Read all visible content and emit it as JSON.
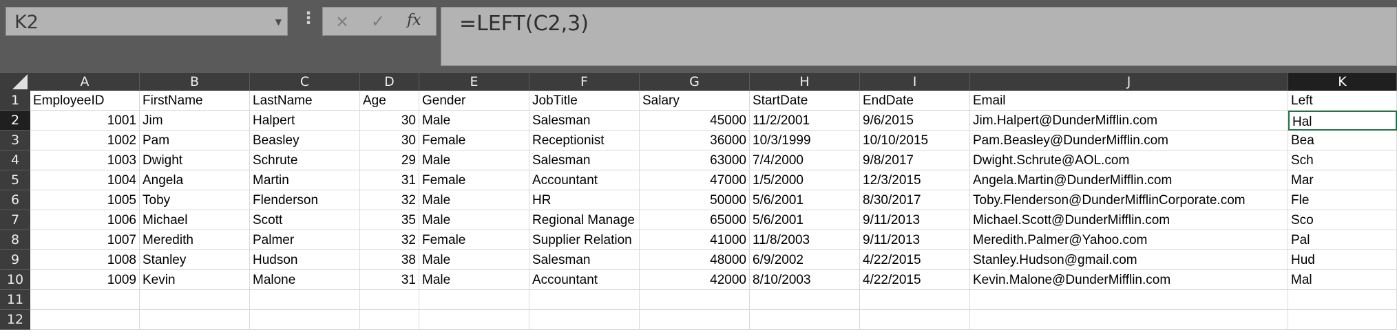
{
  "formula_bar": {
    "name_box": "K2",
    "formula": "=LEFT(C2,3)",
    "cancel_icon": "×",
    "enter_icon": "✓",
    "fx_label": "fx"
  },
  "columns": [
    "A",
    "B",
    "C",
    "D",
    "E",
    "F",
    "G",
    "H",
    "I",
    "J",
    "K"
  ],
  "rows": [
    "1",
    "2",
    "3",
    "4",
    "5",
    "6",
    "7",
    "8",
    "9",
    "10",
    "11",
    "12"
  ],
  "active_cell": {
    "column": "K",
    "row": "2"
  },
  "headers": [
    "EmployeeID",
    "FirstName",
    "LastName",
    "Age",
    "Gender",
    "JobTitle",
    "Salary",
    "StartDate",
    "EndDate",
    "Email",
    "Left"
  ],
  "data": [
    [
      "1001",
      "Jim",
      "Halpert",
      "30",
      "Male",
      "Salesman",
      "45000",
      "11/2/2001",
      "9/6/2015",
      "Jim.Halpert@DunderMifflin.com",
      "Hal"
    ],
    [
      "1002",
      "Pam",
      "Beasley",
      "30",
      "Female",
      "Receptionist",
      "36000",
      "10/3/1999",
      "10/10/2015",
      "Pam.Beasley@DunderMifflin.com",
      "Bea"
    ],
    [
      "1003",
      "Dwight",
      "Schrute",
      "29",
      "Male",
      "Salesman",
      "63000",
      "7/4/2000",
      "9/8/2017",
      "Dwight.Schrute@AOL.com",
      "Sch"
    ],
    [
      "1004",
      "Angela",
      "Martin",
      "31",
      "Female",
      "Accountant",
      "47000",
      "1/5/2000",
      "12/3/2015",
      "Angela.Martin@DunderMifflin.com",
      "Mar"
    ],
    [
      "1005",
      "Toby",
      "Flenderson",
      "32",
      "Male",
      "HR",
      "50000",
      "5/6/2001",
      "8/30/2017",
      "Toby.Flenderson@DunderMifflinCorporate.com",
      "Fle"
    ],
    [
      "1006",
      "Michael",
      "Scott",
      "35",
      "Male",
      "Regional Manage",
      "65000",
      "5/6/2001",
      "9/11/2013",
      "Michael.Scott@DunderMifflin.com",
      "Sco"
    ],
    [
      "1007",
      "Meredith",
      "Palmer",
      "32",
      "Female",
      "Supplier Relation",
      "41000",
      "11/8/2003",
      "9/11/2013",
      "Meredith.Palmer@Yahoo.com",
      "Pal"
    ],
    [
      "1008",
      "Stanley",
      "Hudson",
      "38",
      "Male",
      "Salesman",
      "48000",
      "6/9/2002",
      "4/22/2015",
      "Stanley.Hudson@gmail.com",
      "Hud"
    ],
    [
      "1009",
      "Kevin",
      "Malone",
      "31",
      "Male",
      "Accountant",
      "42000",
      "8/10/2003",
      "4/22/2015",
      "Kevin.Malone@DunderMifflin.com",
      "Mal"
    ]
  ],
  "numeric_columns": [
    0,
    3,
    6
  ],
  "colors": {
    "selection": "#217346",
    "header_bg": "#3c3c3c",
    "formula_bar_bg": "#b3b3b3"
  }
}
